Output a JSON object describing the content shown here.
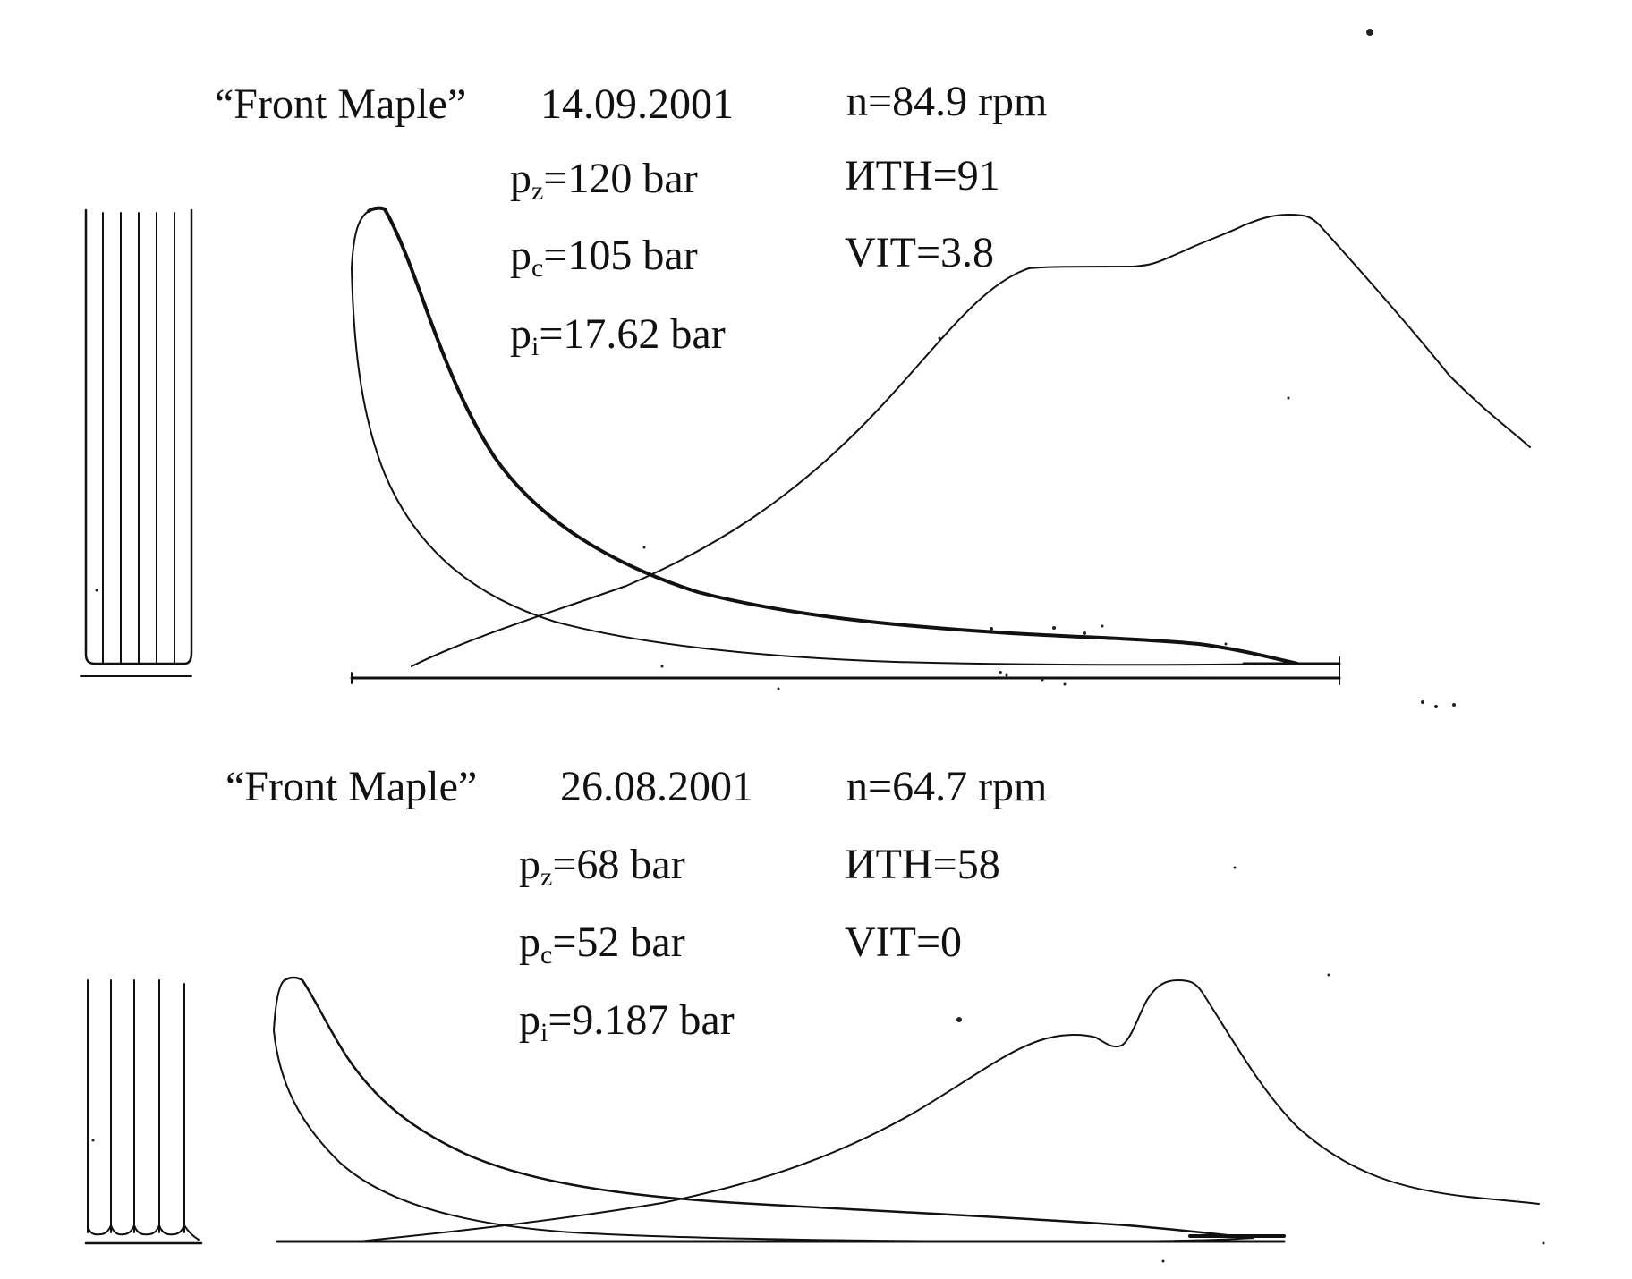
{
  "diagrams": [
    {
      "vessel": "“Front Maple”",
      "date": "14.09.2001",
      "speed": "n=84.9 rpm",
      "pz": {
        "symbol": "p",
        "sub": "z",
        "value": "=120 bar"
      },
      "pc": {
        "symbol": "p",
        "sub": "c",
        "value": "=105 bar"
      },
      "pi": {
        "symbol": "p",
        "sub": "i",
        "value": "=17.62 bar"
      },
      "ith": "ИТН=91",
      "vit": "VIT=3.8"
    },
    {
      "vessel": "“Front Maple”",
      "date": "26.08.2001",
      "speed": "n=64.7 rpm",
      "pz": {
        "symbol": "p",
        "sub": "z",
        "value": "=68 bar"
      },
      "pc": {
        "symbol": "p",
        "sub": "c",
        "value": "=52 bar"
      },
      "pi": {
        "symbol": "p",
        "sub": "i",
        "value": "=9.187 bar"
      },
      "ith": "ИТН=58",
      "vit": "VIT=0"
    }
  ]
}
